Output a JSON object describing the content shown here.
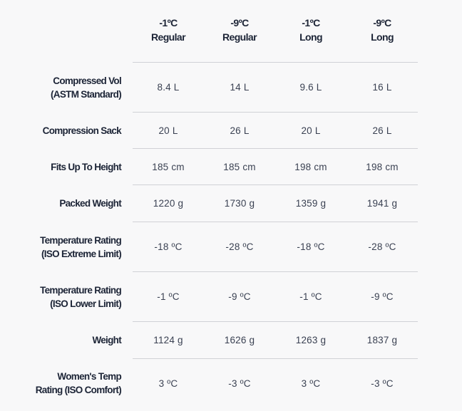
{
  "columns": [
    {
      "temp": "-1ºC",
      "size": "Regular"
    },
    {
      "temp": "-9ºC",
      "size": "Regular"
    },
    {
      "temp": "-1ºC",
      "size": "Long"
    },
    {
      "temp": "-9ºC",
      "size": "Long"
    }
  ],
  "rows": [
    {
      "label1": "Compressed Vol",
      "label2": "(ASTM Standard)",
      "values": [
        "8.4 L",
        "14 L",
        "9.6 L",
        "16 L"
      ]
    },
    {
      "label1": "Compression Sack",
      "label2": "",
      "values": [
        "20 L",
        "26 L",
        "20 L",
        "26 L"
      ]
    },
    {
      "label1": "Fits Up To Height",
      "label2": "",
      "values": [
        "185 cm",
        "185 cm",
        "198 cm",
        "198 cm"
      ]
    },
    {
      "label1": "Packed Weight",
      "label2": "",
      "values": [
        "1220 g",
        "1730 g",
        "1359 g",
        "1941 g"
      ]
    },
    {
      "label1": "Temperature Rating",
      "label2": "(ISO Extreme Limit)",
      "values": [
        "-18 ºC",
        "-28 ºC",
        "-18 ºC",
        "-28 ºC"
      ]
    },
    {
      "label1": "Temperature Rating",
      "label2": "(ISO Lower Limit)",
      "values": [
        "-1 ºC",
        "-9 ºC",
        "-1 ºC",
        "-9 ºC"
      ]
    },
    {
      "label1": "Weight",
      "label2": "",
      "values": [
        "1124 g",
        "1626 g",
        "1263 g",
        "1837 g"
      ]
    },
    {
      "label1": "Women's Temp",
      "label2": "Rating (ISO Comfort)",
      "values": [
        "3 ºC",
        "-3 ºC",
        "3 ºC",
        "-3 ºC"
      ]
    }
  ]
}
